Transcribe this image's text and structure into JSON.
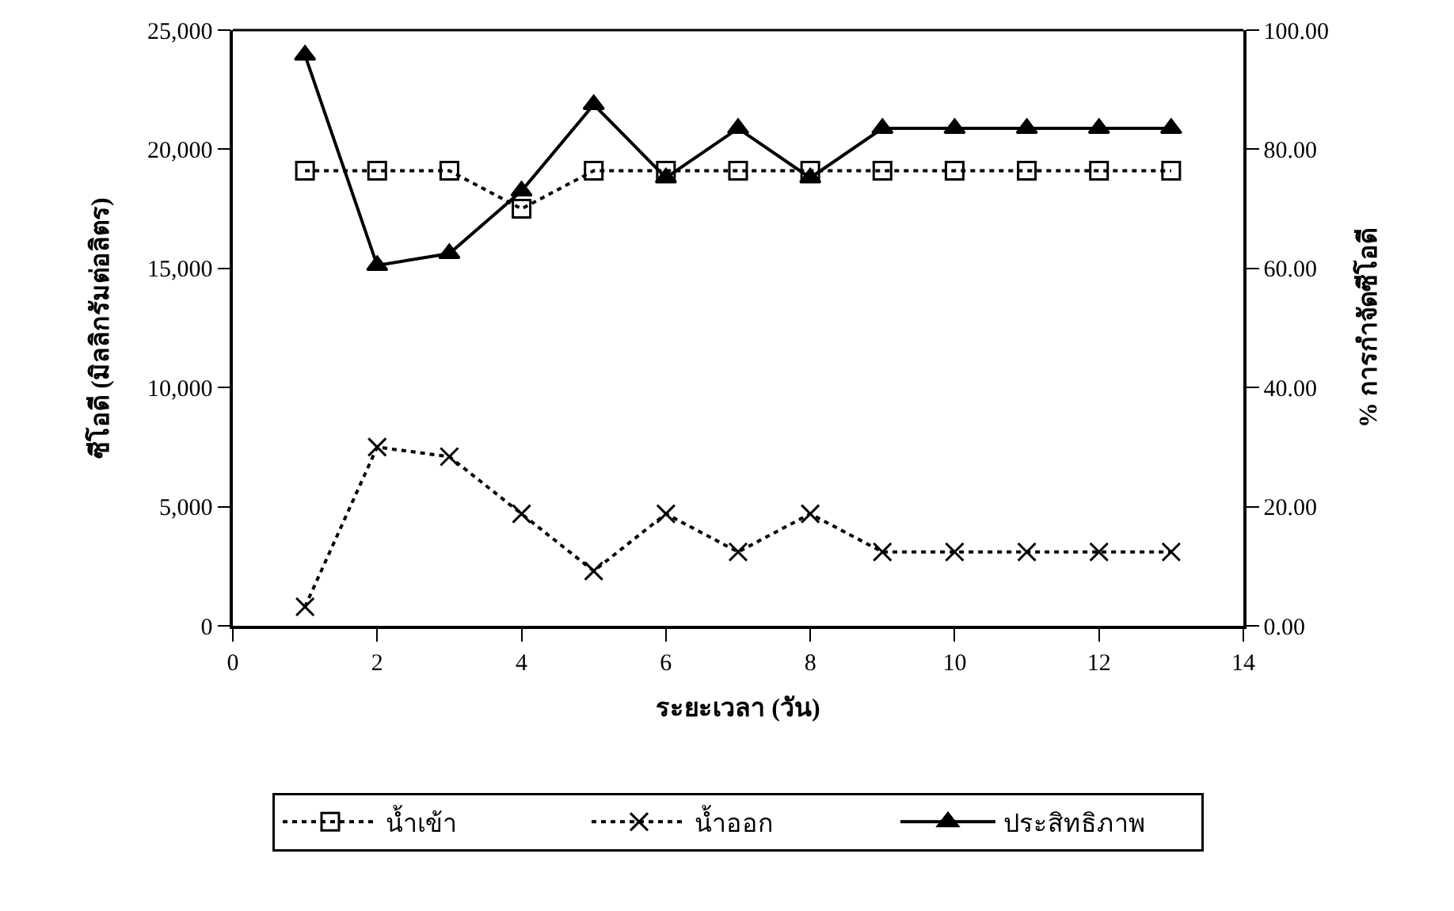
{
  "chart_data": {
    "type": "line",
    "xlabel": "ระยะเวลา (วัน)",
    "ylabel": "ซีโอดี (มิลลิกรัมต่อลิตร)",
    "y2label": "% การกำจัดซีโอดี",
    "x": [
      1,
      2,
      3,
      4,
      5,
      6,
      7,
      8,
      9,
      10,
      11,
      12,
      13
    ],
    "series": [
      {
        "name": "น้ำเข้า",
        "color": "#000000",
        "marker": "square",
        "line_style": "dotted",
        "values": [
          19100,
          19100,
          19100,
          17500,
          19100,
          19100,
          19100,
          19100,
          19100,
          19100,
          19100,
          19100,
          19100
        ]
      },
      {
        "name": "น้ำออก",
        "color": "#000000",
        "marker": "cross",
        "line_style": "dotted",
        "values": [
          800,
          7500,
          7100,
          4700,
          2300,
          4700,
          3100,
          4700,
          3100,
          3100,
          3100,
          3100,
          3100
        ]
      },
      {
        "name": "ประสิทธิภาพ",
        "color": "#000000",
        "marker": "triangle",
        "line_style": "solid",
        "axis": "y2",
        "values": [
          95.8,
          60.5,
          62.5,
          73,
          87.5,
          75.2,
          83.5,
          75.2,
          83.5,
          83.5,
          83.5,
          83.5,
          83.5
        ]
      }
    ],
    "xlim": [
      0,
      14
    ],
    "xticks": [
      0,
      2,
      4,
      6,
      8,
      10,
      12,
      14
    ],
    "ylim": [
      0,
      25000
    ],
    "yticks": [
      0,
      {
        "value": 5000,
        "label": "5,000"
      },
      {
        "value": 10000,
        "label": "10,000"
      },
      {
        "value": 15000,
        "label": "15,000"
      },
      {
        "value": 20000,
        "label": "20,000"
      },
      {
        "value": 25000,
        "label": "25,000"
      }
    ],
    "y2lim": [
      0,
      100
    ],
    "y2ticks": [
      {
        "value": 0,
        "label": "0.00"
      },
      {
        "value": 20,
        "label": "20.00"
      },
      {
        "value": 40,
        "label": "40.00"
      },
      {
        "value": 60,
        "label": "60.00"
      },
      {
        "value": 80,
        "label": "80.00"
      },
      {
        "value": 100,
        "label": "100.00"
      }
    ],
    "legend": "bottom"
  }
}
